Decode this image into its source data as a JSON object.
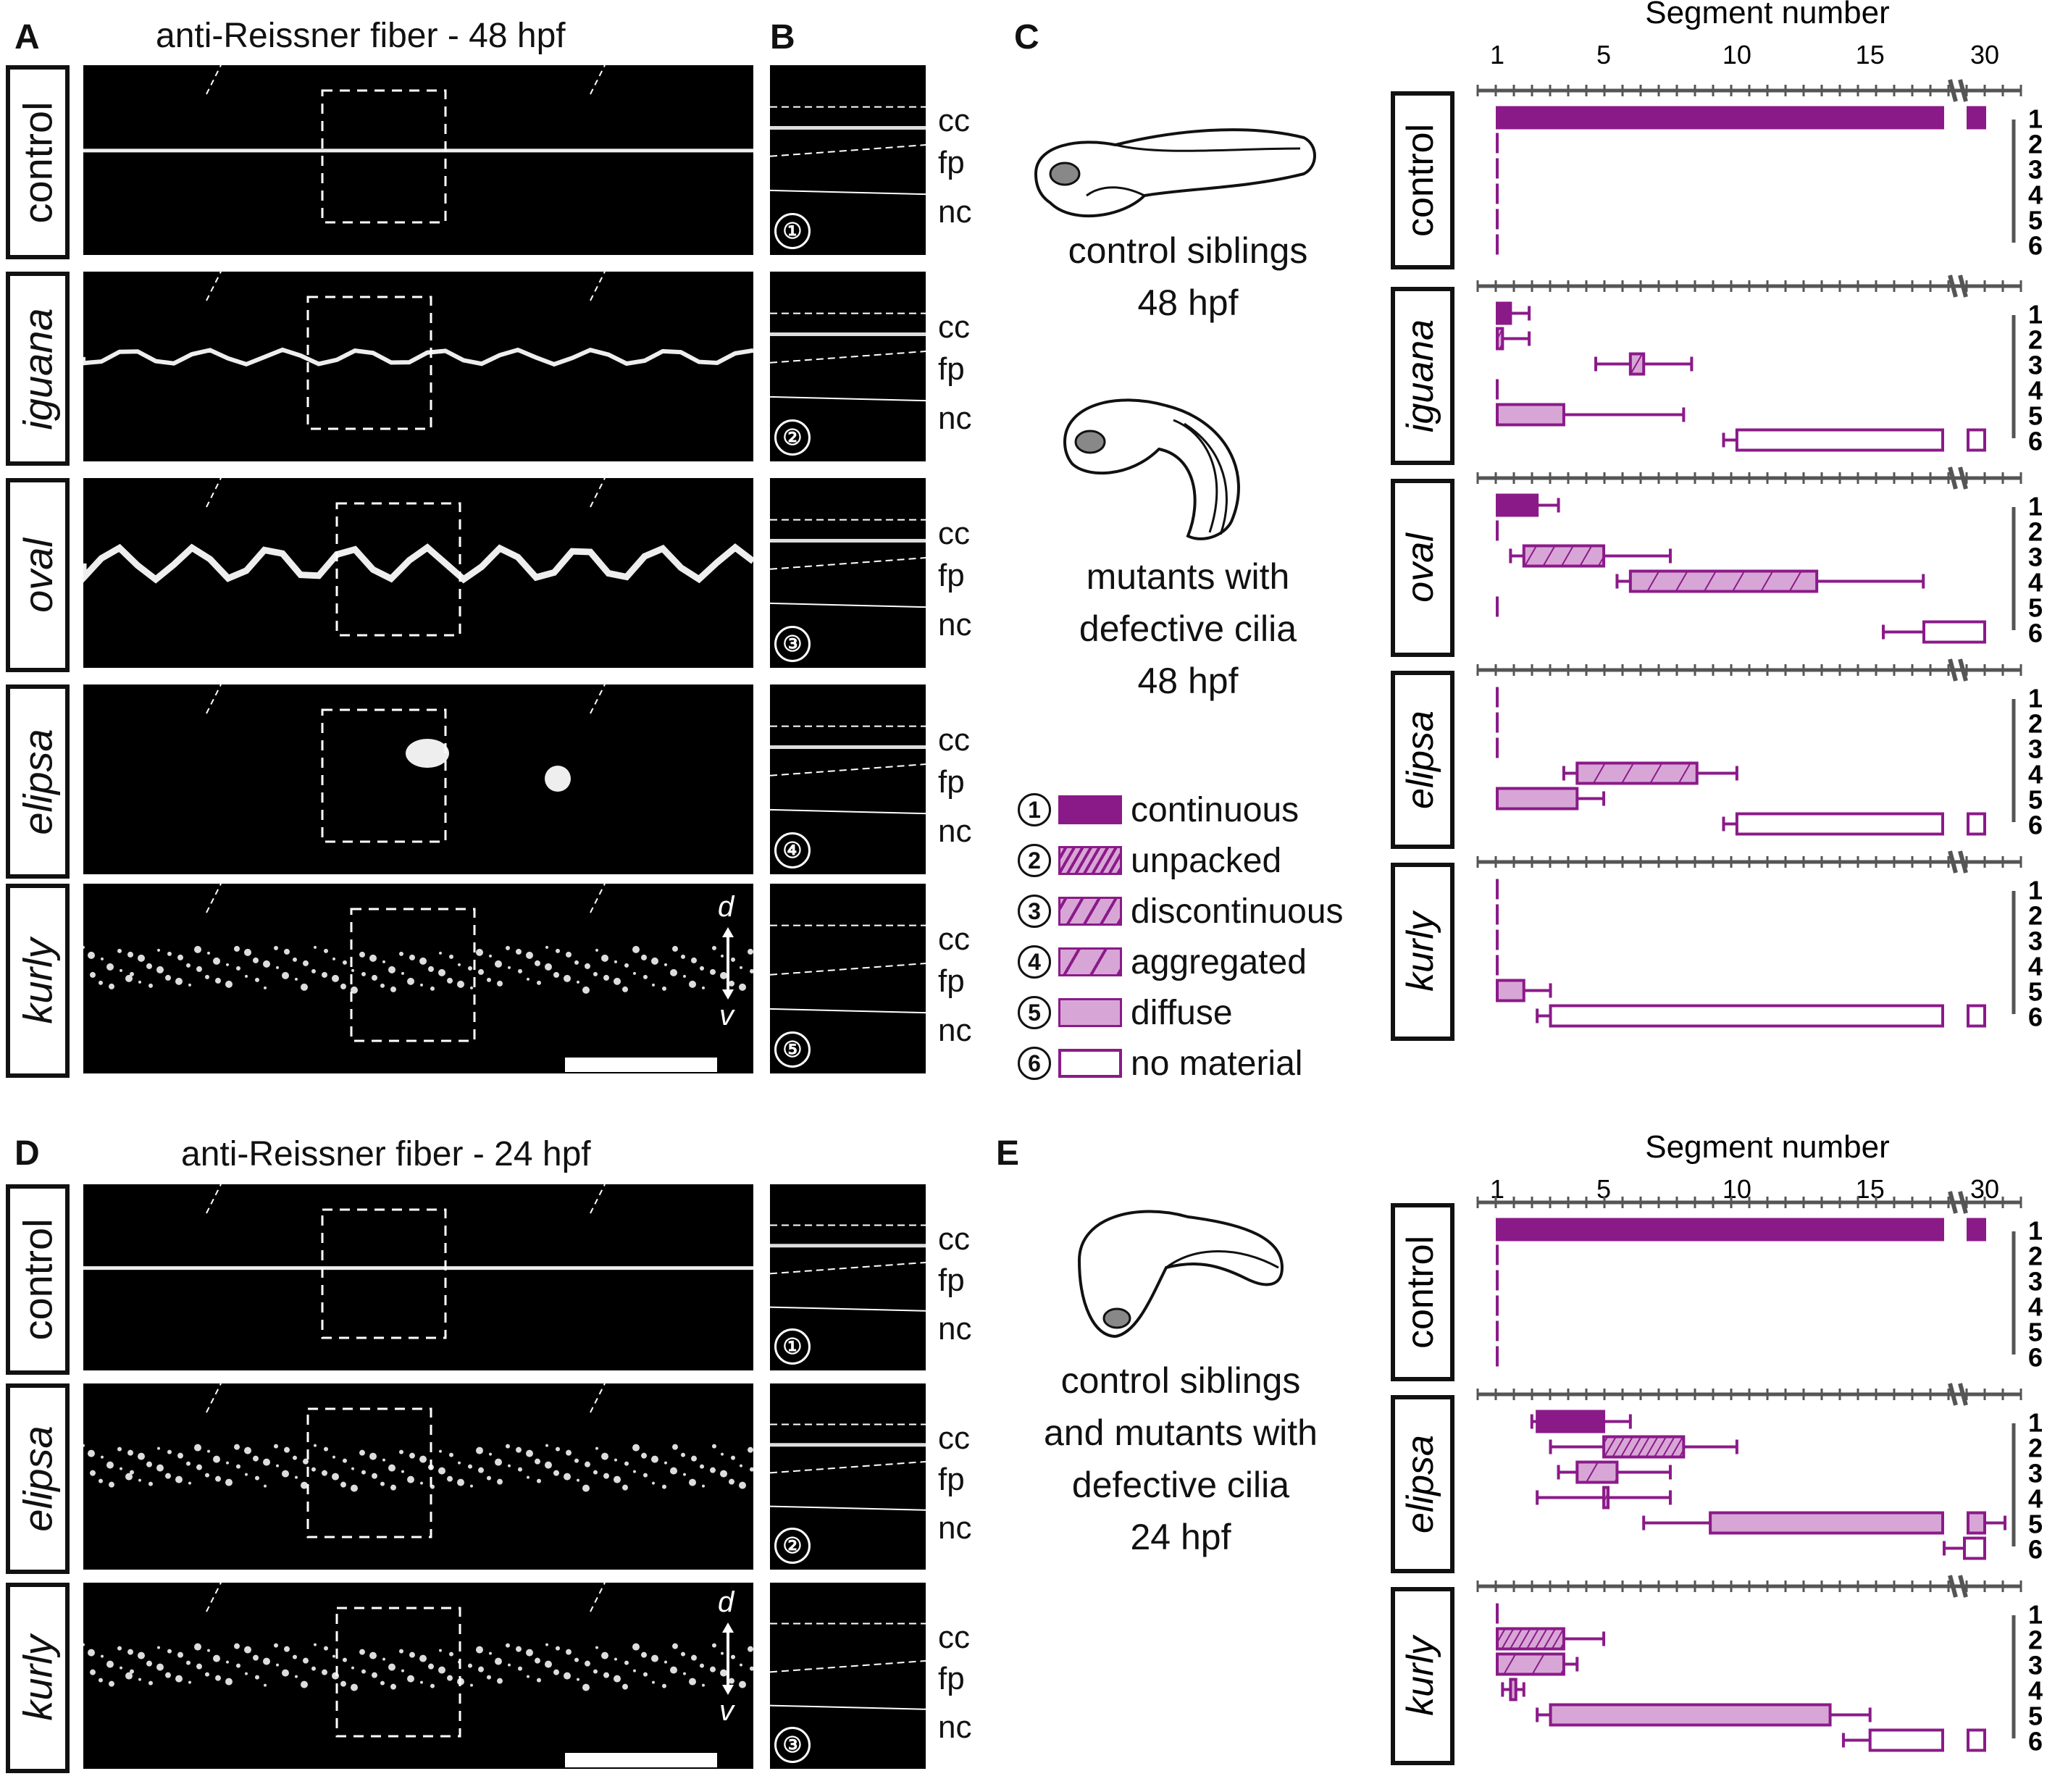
{
  "panels": {
    "A": "A",
    "B": "B",
    "C": "C",
    "D": "D",
    "E": "E"
  },
  "titles": {
    "top": "anti-Reissner fiber - 48 hpf",
    "bottom": "anti-Reissner fiber - 24 hpf"
  },
  "rows_48": [
    "control",
    "iguana",
    "oval",
    "elipsa",
    "kurly"
  ],
  "rows_24": [
    "control",
    "elipsa",
    "kurly"
  ],
  "zoom_labels": {
    "cc": "cc",
    "fp": "fp",
    "nc": "nc"
  },
  "axis_dv": {
    "d": "d",
    "v": "v"
  },
  "circled": [
    "①",
    "②",
    "③",
    "④",
    "⑤",
    "⑥"
  ],
  "captions": {
    "c1": [
      "control siblings",
      "48 hpf"
    ],
    "c2": [
      "mutants with",
      "defective cilia",
      "48 hpf"
    ],
    "e1": [
      "control siblings",
      "and mutants with",
      "defective cilia",
      "24 hpf"
    ]
  },
  "legend": [
    {
      "num": "1",
      "label": "continuous",
      "style": "solid"
    },
    {
      "num": "2",
      "label": "unpacked",
      "style": "hatch-dense"
    },
    {
      "num": "3",
      "label": "discontinuous",
      "style": "hatch-sparse"
    },
    {
      "num": "4",
      "label": "aggregated",
      "style": "hatch-wide"
    },
    {
      "num": "5",
      "label": "diffuse",
      "style": "light"
    },
    {
      "num": "6",
      "label": "no material",
      "style": "empty"
    }
  ],
  "colors": {
    "purple": "#8B1A89",
    "light_purple": "#D8A6D6"
  },
  "chart_data": [
    {
      "type": "bar",
      "panel": "C",
      "xlabel": "Segment number",
      "xticks": [
        "1",
        "5",
        "10",
        "15",
        "30"
      ],
      "categories": [
        "1",
        "2",
        "3",
        "4",
        "5",
        "6"
      ],
      "groups": [
        {
          "name": "control",
          "bars": [
            {
              "cat": 1,
              "start": 1,
              "end": 30,
              "style": "solid"
            },
            {
              "cat": 2,
              "start": 1,
              "end": 1,
              "style": "solid"
            },
            {
              "cat": 3,
              "start": 1,
              "end": 1,
              "style": "solid"
            },
            {
              "cat": 4,
              "start": 1,
              "end": 1,
              "style": "solid"
            },
            {
              "cat": 5,
              "start": 1,
              "end": 1,
              "style": "solid"
            },
            {
              "cat": 6,
              "start": 1,
              "end": 1,
              "style": "solid"
            }
          ]
        },
        {
          "name": "iguana",
          "bars": [
            {
              "cat": 1,
              "start": 1,
              "end": 1.5,
              "whisker": 2.2,
              "style": "solid"
            },
            {
              "cat": 2,
              "start": 1,
              "end": 1.2,
              "whisker": 2.2,
              "style": "hatch-dense"
            },
            {
              "cat": 3,
              "start": 6,
              "end": 6.5,
              "wlo": 4.7,
              "whisker": 8.3,
              "style": "hatch-wide"
            },
            {
              "cat": 4,
              "start": 1,
              "end": 1,
              "style": "solid"
            },
            {
              "cat": 5,
              "start": 1,
              "end": 3.5,
              "whisker": 8,
              "style": "light"
            },
            {
              "cat": 6,
              "start": 10,
              "end": 30,
              "wlo": 9.5,
              "style": "empty"
            }
          ]
        },
        {
          "name": "oval",
          "bars": [
            {
              "cat": 1,
              "start": 1,
              "end": 2.5,
              "whisker": 3.3,
              "style": "solid"
            },
            {
              "cat": 2,
              "start": 1,
              "end": 1,
              "style": "solid"
            },
            {
              "cat": 3,
              "start": 2,
              "end": 5,
              "wlo": 1.5,
              "whisker": 7.5,
              "style": "hatch-sparse"
            },
            {
              "cat": 4,
              "start": 6,
              "end": 13,
              "wlo": 5.5,
              "whisker": 17,
              "style": "hatch-wide"
            },
            {
              "cat": 5,
              "start": 1,
              "end": 1,
              "style": "solid"
            },
            {
              "cat": 6,
              "start": 27,
              "end": 30,
              "wlo": 25,
              "style": "empty"
            }
          ]
        },
        {
          "name": "elipsa",
          "bars": [
            {
              "cat": 1,
              "start": 1,
              "end": 1,
              "style": "solid"
            },
            {
              "cat": 2,
              "start": 1,
              "end": 1,
              "style": "solid"
            },
            {
              "cat": 3,
              "start": 1,
              "end": 1,
              "style": "solid"
            },
            {
              "cat": 4,
              "start": 4,
              "end": 8.5,
              "wlo": 3.5,
              "whisker": 10,
              "style": "hatch-wide"
            },
            {
              "cat": 5,
              "start": 1,
              "end": 4,
              "whisker": 5,
              "style": "light"
            },
            {
              "cat": 6,
              "start": 10,
              "end": 30,
              "wlo": 9.5,
              "style": "empty"
            }
          ]
        },
        {
          "name": "kurly",
          "bars": [
            {
              "cat": 1,
              "start": 1,
              "end": 1,
              "style": "solid"
            },
            {
              "cat": 2,
              "start": 1,
              "end": 1,
              "style": "solid"
            },
            {
              "cat": 3,
              "start": 1,
              "end": 1,
              "style": "solid"
            },
            {
              "cat": 4,
              "start": 1,
              "end": 1,
              "style": "solid"
            },
            {
              "cat": 5,
              "start": 1,
              "end": 2,
              "whisker": 3,
              "style": "light"
            },
            {
              "cat": 6,
              "start": 3,
              "end": 30,
              "wlo": 2.5,
              "style": "empty"
            }
          ]
        }
      ]
    },
    {
      "type": "bar",
      "panel": "E",
      "xlabel": "Segment number",
      "xticks": [
        "1",
        "5",
        "10",
        "15",
        "30"
      ],
      "categories": [
        "1",
        "2",
        "3",
        "4",
        "5",
        "6"
      ],
      "groups": [
        {
          "name": "control",
          "bars": [
            {
              "cat": 1,
              "start": 1,
              "end": 30,
              "style": "solid"
            },
            {
              "cat": 2,
              "start": 1,
              "end": 1,
              "style": "solid"
            },
            {
              "cat": 3,
              "start": 1,
              "end": 1,
              "style": "solid"
            },
            {
              "cat": 4,
              "start": 1,
              "end": 1,
              "style": "solid"
            },
            {
              "cat": 5,
              "start": 1,
              "end": 1,
              "style": "solid"
            },
            {
              "cat": 6,
              "start": 1,
              "end": 1,
              "style": "solid"
            }
          ]
        },
        {
          "name": "elipsa",
          "bars": [
            {
              "cat": 1,
              "start": 2.5,
              "end": 5,
              "wlo": 2.3,
              "whisker": 6,
              "style": "solid"
            },
            {
              "cat": 2,
              "start": 5,
              "end": 8,
              "wlo": 3,
              "whisker": 10,
              "style": "hatch-dense"
            },
            {
              "cat": 3,
              "start": 4,
              "end": 5.5,
              "wlo": 3.3,
              "whisker": 7.5,
              "style": "hatch-wide"
            },
            {
              "cat": 4,
              "start": 5,
              "end": 5,
              "wlo": 2.5,
              "whisker": 7.5,
              "style": "hatch-wide"
            },
            {
              "cat": 5,
              "start": 9,
              "end": 30,
              "wlo": 6.5,
              "whisker": 31,
              "style": "light"
            },
            {
              "cat": 6,
              "start": 29,
              "end": 30,
              "wlo": 28,
              "style": "empty"
            }
          ]
        },
        {
          "name": "kurly",
          "bars": [
            {
              "cat": 1,
              "start": 1,
              "end": 1,
              "style": "solid"
            },
            {
              "cat": 2,
              "start": 1,
              "end": 3.5,
              "whisker": 5,
              "style": "hatch-dense"
            },
            {
              "cat": 3,
              "start": 1,
              "end": 3.5,
              "whisker": 4,
              "style": "hatch-wide"
            },
            {
              "cat": 4,
              "start": 1.5,
              "end": 1.7,
              "wlo": 1.2,
              "whisker": 2,
              "style": "hatch-wide"
            },
            {
              "cat": 5,
              "start": 3,
              "end": 13.5,
              "wlo": 2.5,
              "whisker": 15,
              "style": "light"
            },
            {
              "cat": 6,
              "start": 15,
              "end": 30,
              "wlo": 14,
              "style": "empty"
            }
          ]
        }
      ]
    }
  ]
}
